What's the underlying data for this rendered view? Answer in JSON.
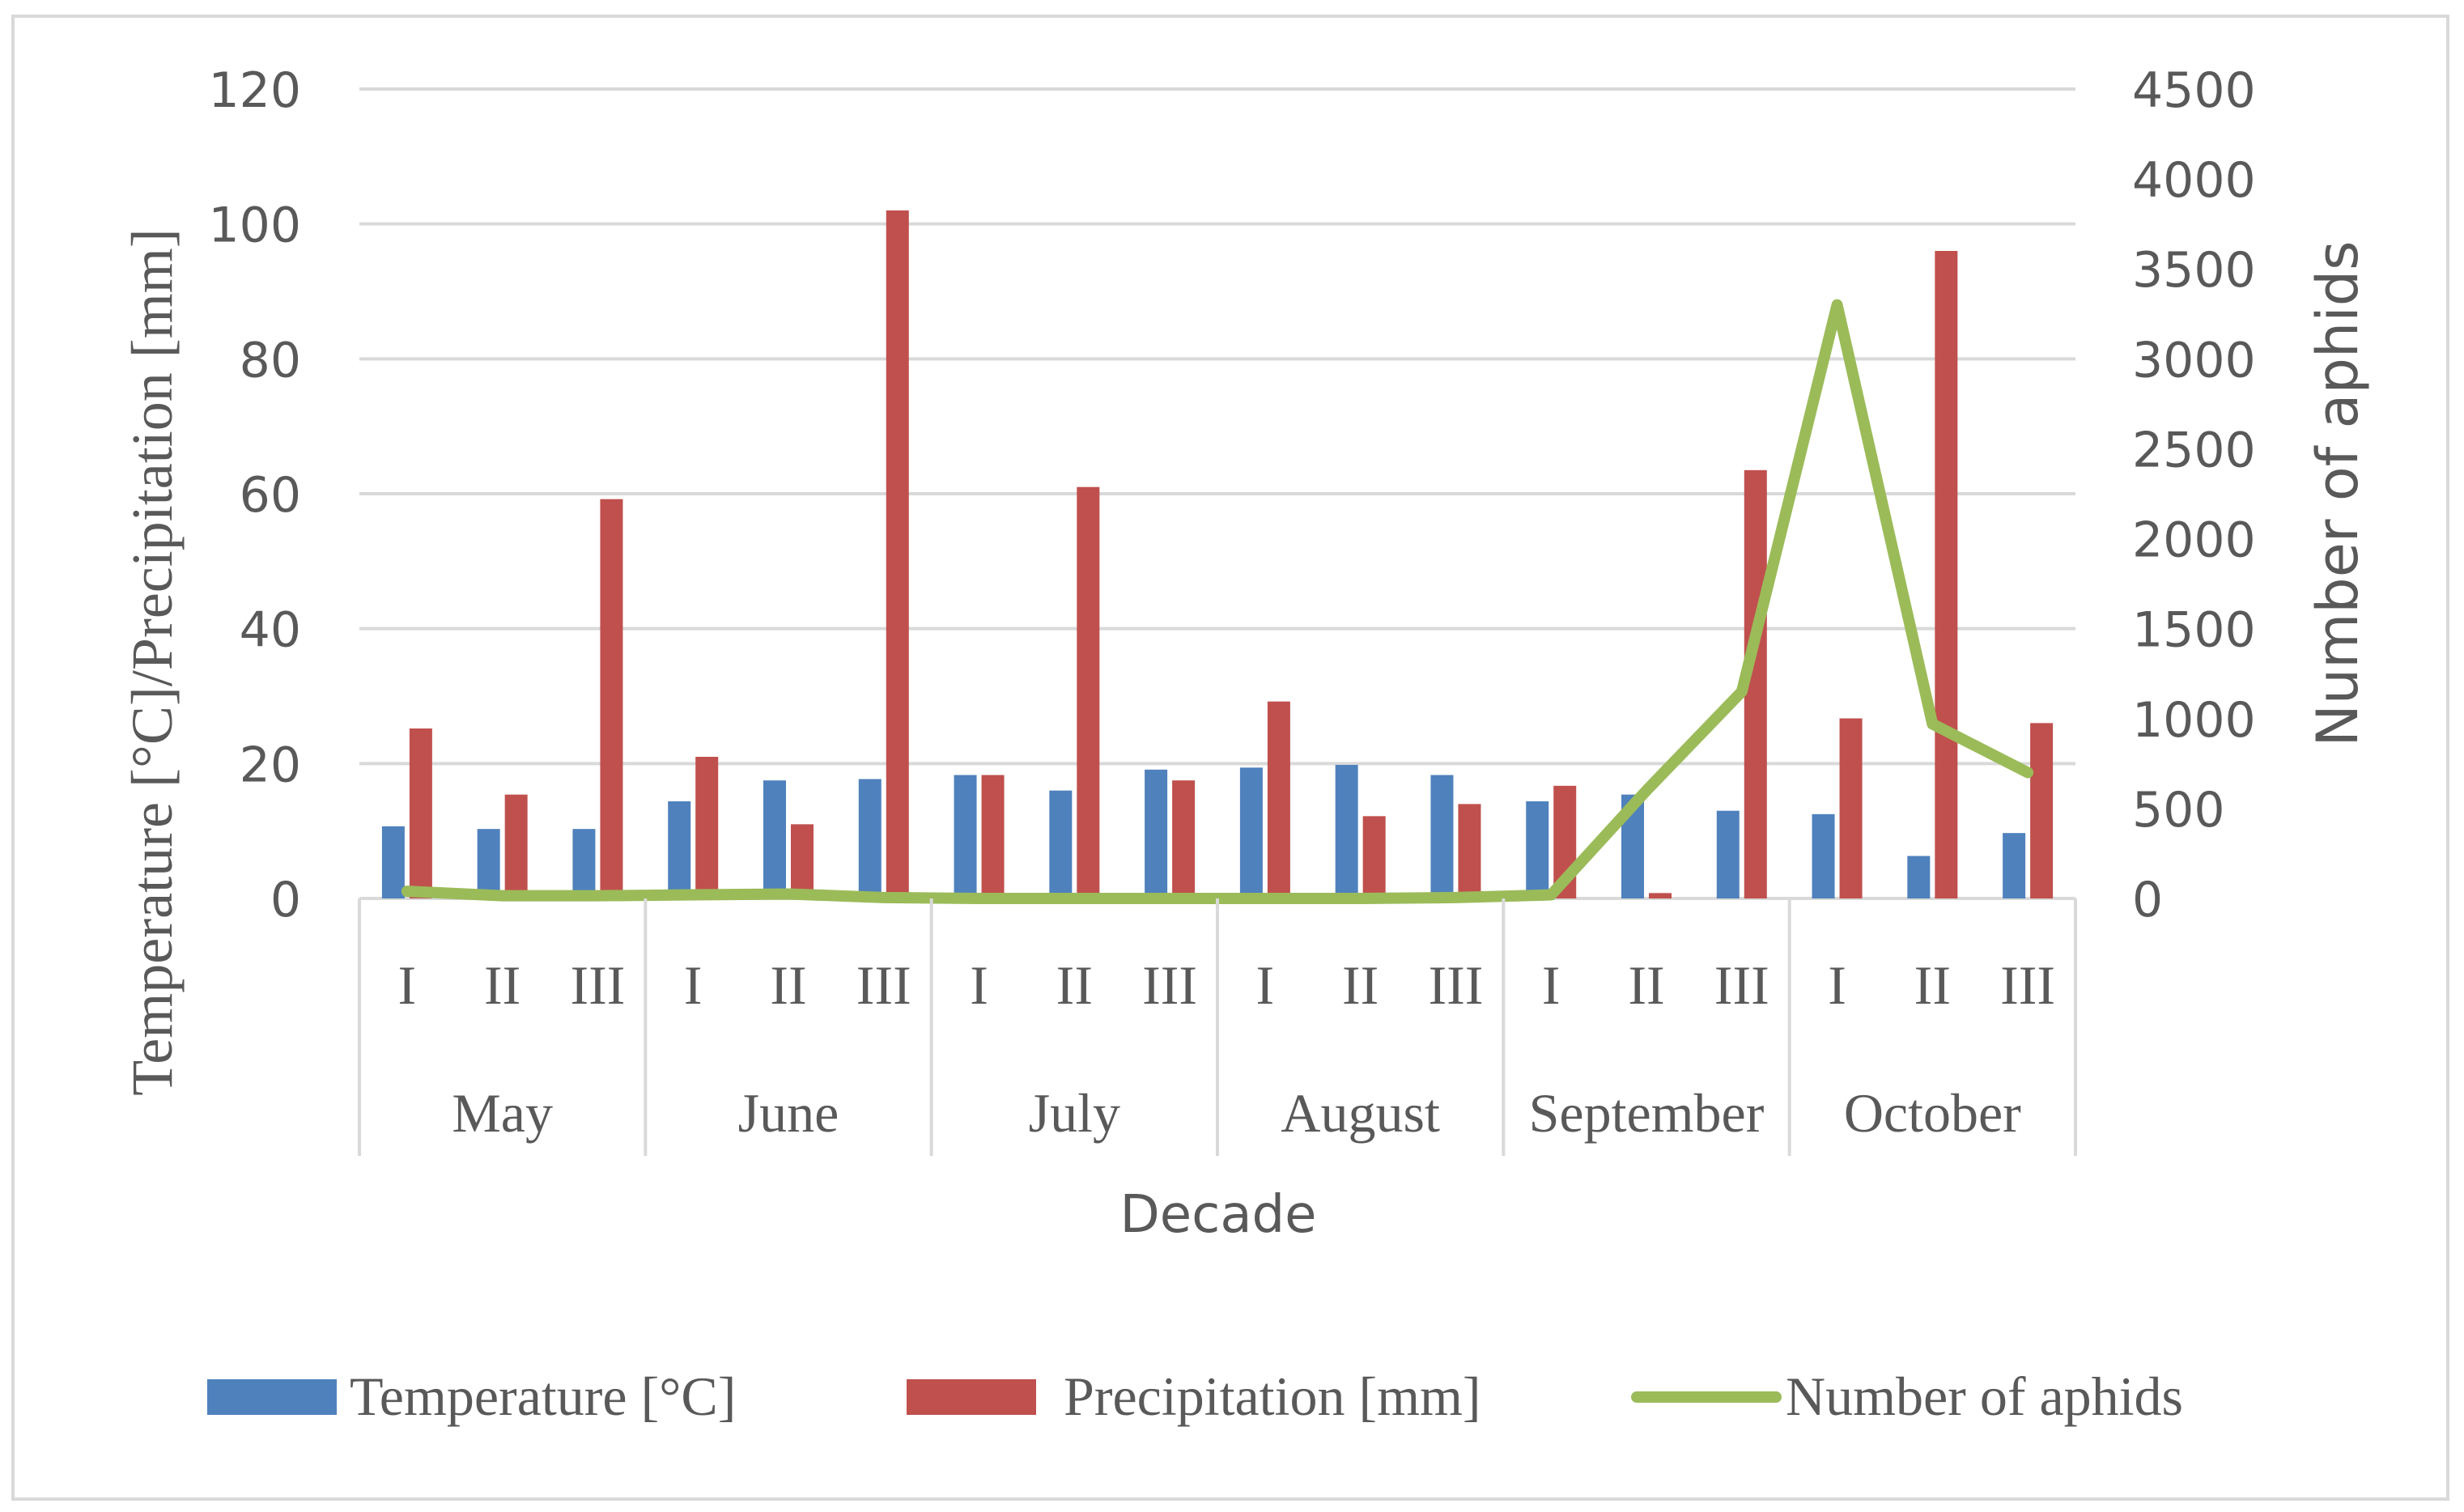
{
  "chart_data": {
    "type": "bar",
    "xlabel": "Decade",
    "ylabel_left": "Temperature [°C]/Precipitation [mm]",
    "ylabel_right": "Number of aphids",
    "ylim_left": [
      0,
      120
    ],
    "yticks_left": [
      0,
      20,
      40,
      60,
      80,
      100,
      120
    ],
    "ylim_right": [
      0,
      4500
    ],
    "yticks_right": [
      0,
      500,
      1000,
      1500,
      2000,
      2500,
      3000,
      3500,
      4000,
      4500
    ],
    "grid": true,
    "legend_position": "bottom",
    "groups": [
      {
        "label": "May",
        "decades": [
          "I",
          "II",
          "III"
        ]
      },
      {
        "label": "June",
        "decades": [
          "I",
          "II",
          "III"
        ]
      },
      {
        "label": "July",
        "decades": [
          "I",
          "II",
          "III"
        ]
      },
      {
        "label": "August",
        "decades": [
          "I",
          "II",
          "III"
        ]
      },
      {
        "label": "September",
        "decades": [
          "I",
          "II",
          "III"
        ]
      },
      {
        "label": "October",
        "decades": [
          "I",
          "II",
          "III"
        ]
      }
    ],
    "series": [
      {
        "name": "Temperature [°C]",
        "kind": "bar",
        "axis": "left",
        "color": "#4f81bd",
        "values": [
          10.7,
          10.3,
          10.3,
          14.4,
          17.5,
          17.7,
          18.3,
          16.0,
          19.1,
          19.4,
          19.8,
          18.3,
          14.4,
          15.4,
          13.0,
          12.5,
          6.3,
          9.7
        ]
      },
      {
        "name": "Precipitation [mm]",
        "kind": "bar",
        "axis": "left",
        "color": "#c0504d",
        "values": [
          25.2,
          15.4,
          59.2,
          21.0,
          11.0,
          102.0,
          18.3,
          61.0,
          17.5,
          29.2,
          12.2,
          14.0,
          16.7,
          0.8,
          63.5,
          26.7,
          96.0,
          26.0
        ]
      },
      {
        "name": "Number of aphids",
        "kind": "line",
        "axis": "right",
        "color": "#9bbb59",
        "values": [
          40,
          15,
          15,
          20,
          25,
          5,
          0,
          0,
          0,
          0,
          0,
          5,
          20,
          600,
          1150,
          3300,
          970,
          700
        ]
      }
    ]
  }
}
